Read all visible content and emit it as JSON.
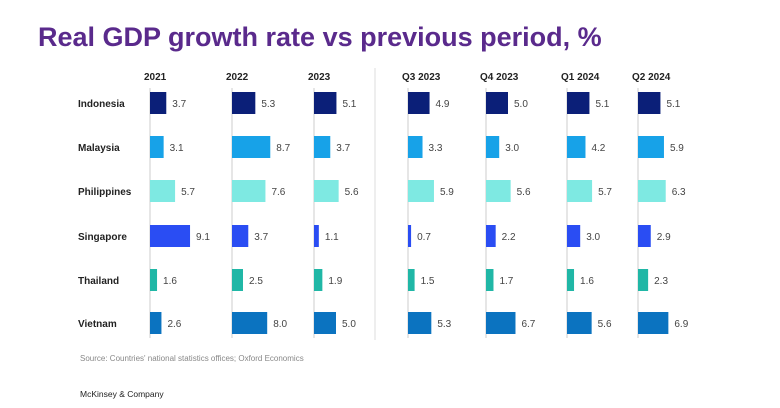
{
  "title": "Real GDP growth rate vs previous period, %",
  "source": "Source: Countries' national statistics offices; Oxford Economics",
  "footer": "McKinsey & Company",
  "chart_data": {
    "type": "bar",
    "title": "Real GDP growth rate vs previous period, %",
    "periods": [
      "2021",
      "2022",
      "2023",
      "Q3 2023",
      "Q4 2023",
      "Q1 2024",
      "Q2 2024"
    ],
    "countries": [
      "Indonesia",
      "Malaysia",
      "Philippines",
      "Singapore",
      "Thailand",
      "Vietnam"
    ],
    "colors": [
      "#0b1f78",
      "#17a2e8",
      "#7ee9e2",
      "#2a4df3",
      "#20b7a6",
      "#0b73c0"
    ],
    "values": [
      [
        3.7,
        5.3,
        5.1,
        4.9,
        5.0,
        5.1,
        5.1
      ],
      [
        3.1,
        8.7,
        3.7,
        3.3,
        3.0,
        4.2,
        5.9
      ],
      [
        5.7,
        7.6,
        5.6,
        5.9,
        5.6,
        5.7,
        6.3
      ],
      [
        9.1,
        3.7,
        1.1,
        0.7,
        2.2,
        3.0,
        2.9
      ],
      [
        1.6,
        2.5,
        1.9,
        1.5,
        1.7,
        1.6,
        2.3
      ],
      [
        2.6,
        8.0,
        5.0,
        5.3,
        6.7,
        5.6,
        6.9
      ]
    ]
  }
}
